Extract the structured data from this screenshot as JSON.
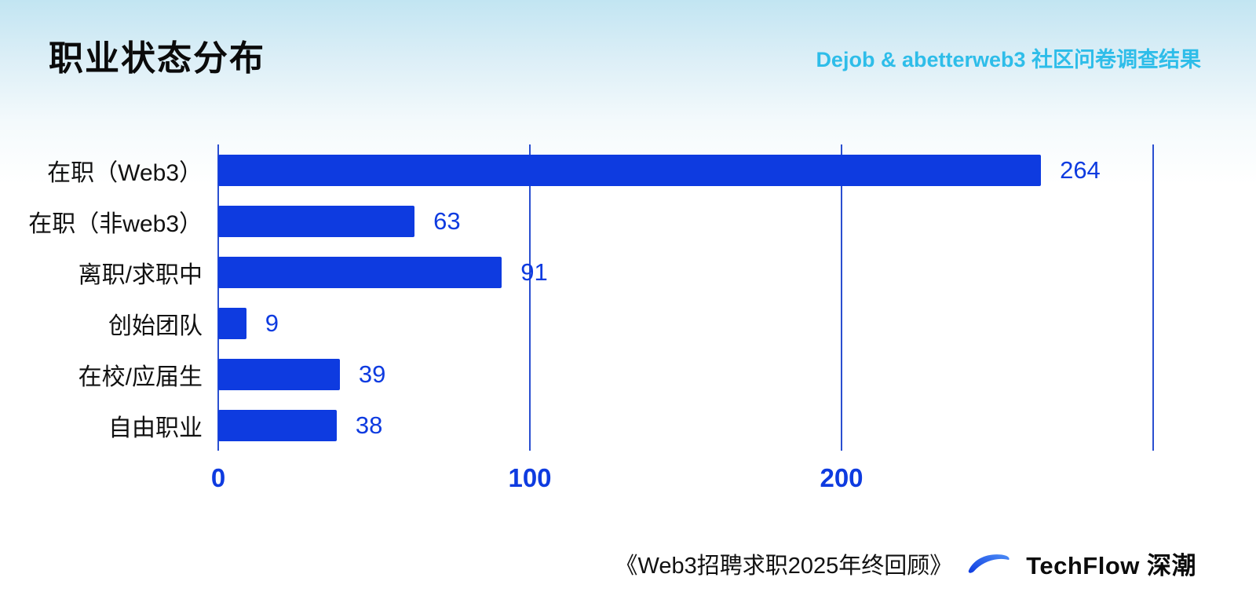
{
  "page": {
    "title": "职业状态分布",
    "subtitle": "Dejob & abetterweb3 社区问卷调查结果"
  },
  "chart_data": {
    "type": "bar",
    "orientation": "horizontal",
    "title": "职业状态分布",
    "categories": [
      "在职（Web3）",
      "在职（非web3）",
      "离职/求职中",
      "创始团队",
      "在校/应届生",
      "自由职业"
    ],
    "values": [
      264,
      63,
      91,
      9,
      39,
      38
    ],
    "xlabel": "",
    "ylabel": "",
    "xlim": [
      0,
      300
    ],
    "xticks": [
      0,
      100,
      200
    ],
    "gridlines": [
      0,
      100,
      200,
      300
    ],
    "grid": true,
    "legend": "none",
    "bar_color": "#0e3be0",
    "value_label_color": "#0e3be0"
  },
  "footer": {
    "source_text": "《Web3招聘求职2025年终回顾》",
    "brand": "TechFlow 深潮"
  },
  "icons": {
    "brand_logo": "techflow-swoosh-icon"
  },
  "colors": {
    "bar": "#0e3be0",
    "axis_text": "#0e3be0",
    "grid": "#2a4fd0",
    "subtitle": "#2ebde9",
    "title": "#0b0b0b",
    "background_top": "#c2e5f2",
    "background_bottom": "#ffffff"
  }
}
